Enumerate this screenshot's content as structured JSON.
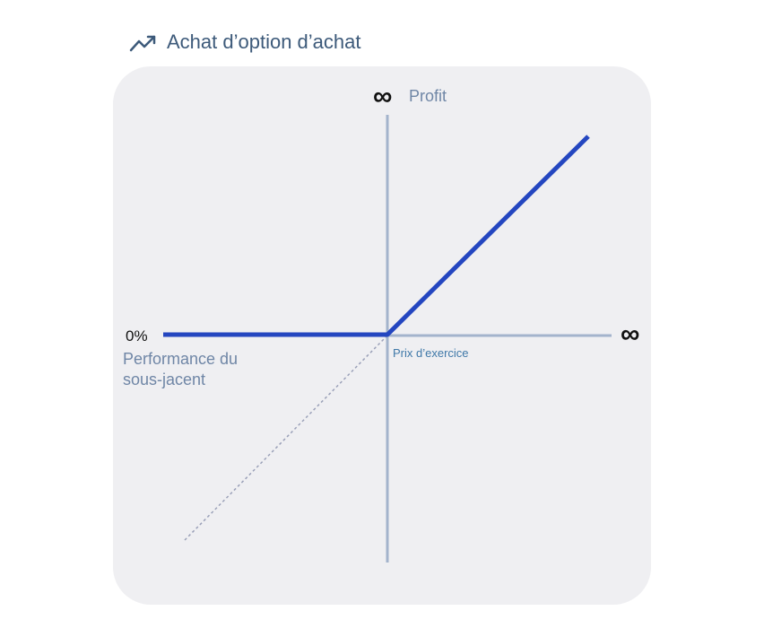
{
  "header": {
    "title": "Achat d’option d’achat"
  },
  "diagram": {
    "y_axis": {
      "symbol": "∞",
      "label": "Profit"
    },
    "x_axis": {
      "start": "0%",
      "label": "Performance du sous-jacent",
      "end": "∞"
    },
    "strike": "Prix d’exercice"
  }
}
